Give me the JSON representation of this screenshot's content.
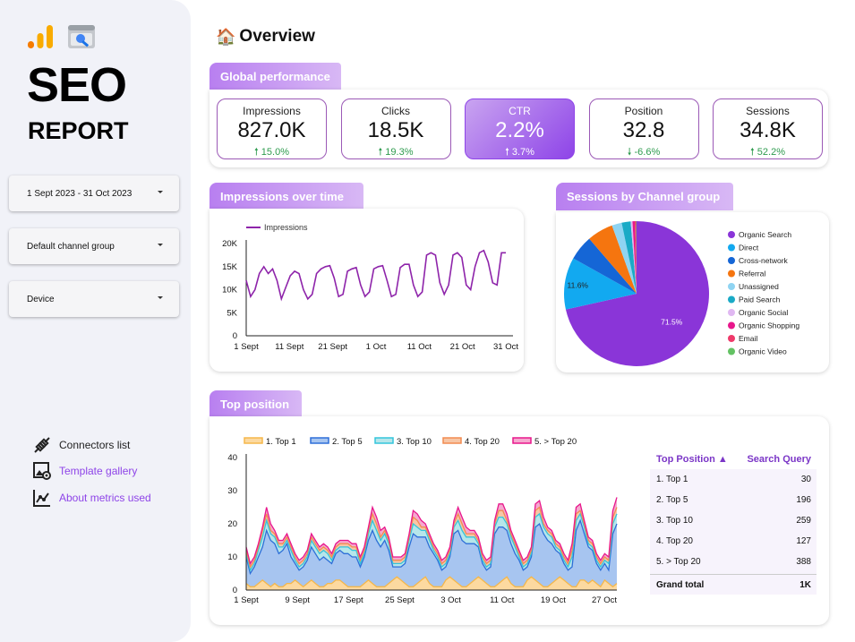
{
  "sidebar": {
    "title": "SEO",
    "subtitle": "REPORT",
    "filters": [
      "1 Sept 2023 - 31 Oct 2023",
      "Default channel group",
      "Device"
    ],
    "links": [
      {
        "label": "Connectors list",
        "icon": "connector-plug-icon",
        "color": "#222222"
      },
      {
        "label": "Template gallery",
        "icon": "gallery-image-icon",
        "color": "#8e44e8"
      },
      {
        "label": "About metrics used",
        "icon": "metrics-chart-icon",
        "color": "#8e44e8"
      }
    ]
  },
  "header": {
    "icon": "house-emoji-icon",
    "title": "Overview"
  },
  "sections": {
    "global": "Global performance",
    "impressions": "Impressions over time",
    "sessions": "Sessions by Channel group",
    "top_position": "Top position"
  },
  "kpis": [
    {
      "label": "Impressions",
      "value": "827.0K",
      "change": "15.0%",
      "dir": "up"
    },
    {
      "label": "Clicks",
      "value": "18.5K",
      "change": "19.3%",
      "dir": "up"
    },
    {
      "label": "CTR",
      "value": "2.2%",
      "change": "3.7%",
      "dir": "up",
      "active": true
    },
    {
      "label": "Position",
      "value": "32.8",
      "change": "-6.6%",
      "dir": "down"
    },
    {
      "label": "Sessions",
      "value": "34.8K",
      "change": "52.2%",
      "dir": "up"
    }
  ],
  "table": {
    "headers": [
      "Top Position",
      "Search Query"
    ],
    "rows": [
      {
        "label": "1. Top 1",
        "value": "30"
      },
      {
        "label": "2. Top 5",
        "value": "196"
      },
      {
        "label": "3. Top 10",
        "value": "259"
      },
      {
        "label": "4. Top 20",
        "value": "127"
      },
      {
        "label": "5. > Top 20",
        "value": "388"
      }
    ],
    "total_label": "Grand total",
    "total_value": "1K"
  },
  "chart_data": [
    {
      "type": "line",
      "legend": [
        "Impressions"
      ],
      "x_ticks": [
        "1 Sept",
        "11 Sept",
        "21 Sept",
        "1 Oct",
        "11 Oct",
        "21 Oct",
        "31 Oct"
      ],
      "y_ticks": [
        "0",
        "5K",
        "10K",
        "15K",
        "20K"
      ],
      "ylim": [
        0,
        20000
      ],
      "color": "#8e24aa",
      "series": [
        {
          "name": "Impressions",
          "values": [
            12000,
            8500,
            10000,
            13500,
            15000,
            13500,
            14500,
            12000,
            8000,
            10500,
            13000,
            14000,
            13500,
            10000,
            8000,
            9000,
            13500,
            14500,
            15000,
            15200,
            12500,
            8500,
            9000,
            14000,
            14500,
            14800,
            11000,
            8500,
            9500,
            14500,
            15000,
            15200,
            12000,
            8500,
            9000,
            14800,
            15500,
            15500,
            11000,
            8500,
            9500,
            17500,
            18000,
            17500,
            11500,
            9000,
            11000,
            17500,
            18000,
            17000,
            11000,
            10000,
            15000,
            18000,
            18500,
            16000,
            11500,
            11000,
            18000,
            18000
          ]
        }
      ]
    },
    {
      "type": "pie",
      "legend_position": "right",
      "slices": [
        {
          "label": "Organic Search",
          "value": 71.5,
          "color": "#8a35d8",
          "shown": "71.5%"
        },
        {
          "label": "Direct",
          "value": 11.6,
          "color": "#12a9f0",
          "shown": "11.6%"
        },
        {
          "label": "Cross-network",
          "value": 5.6,
          "color": "#1566d6",
          "shown": ""
        },
        {
          "label": "Referral",
          "value": 5.8,
          "color": "#f5750f",
          "shown": ""
        },
        {
          "label": "Unassigned",
          "value": 2.2,
          "color": "#8fd4f2",
          "shown": ""
        },
        {
          "label": "Paid Search",
          "value": 2.0,
          "color": "#1aaac6",
          "shown": ""
        },
        {
          "label": "Organic Social",
          "value": 0.4,
          "color": "#e0b8f2",
          "shown": ""
        },
        {
          "label": "Organic Shopping",
          "value": 0.5,
          "color": "#e8178c",
          "shown": ""
        },
        {
          "label": "Email",
          "value": 0.3,
          "color": "#ef3a6a",
          "shown": ""
        },
        {
          "label": "Organic Video",
          "value": 0.1,
          "color": "#63c263",
          "shown": ""
        }
      ]
    },
    {
      "type": "area",
      "stacked": true,
      "x_ticks": [
        "1 Sept",
        "9 Sept",
        "17 Sept",
        "25 Sept",
        "3 Oct",
        "11 Oct",
        "19 Oct",
        "27 Oct"
      ],
      "y_ticks": [
        "0",
        "10",
        "20",
        "30",
        "40"
      ],
      "ylim": [
        0,
        40
      ],
      "series": [
        {
          "name": "1. Top 1",
          "color": "#f5b74a",
          "fill": "#fcd9a0",
          "values": [
            2,
            1,
            1,
            2,
            3,
            2,
            1,
            2,
            1,
            1,
            2,
            2,
            3,
            2,
            1,
            2,
            3,
            2,
            1,
            1,
            2,
            2,
            3,
            3,
            2,
            1,
            1,
            1,
            1,
            2,
            3,
            2,
            1,
            1,
            1,
            2,
            3,
            4,
            3,
            2,
            1,
            1,
            2,
            3,
            4,
            2,
            1,
            1,
            1,
            3,
            4,
            3,
            2,
            1,
            1,
            2,
            3,
            4,
            3,
            2,
            1,
            1,
            2,
            3,
            4,
            2,
            1,
            1,
            1,
            3,
            4,
            3,
            2,
            1,
            1,
            2,
            3,
            4,
            3,
            2,
            1,
            1,
            3,
            3,
            2,
            3,
            2,
            1,
            3,
            2,
            1,
            2
          ]
        },
        {
          "name": "2. Top 5",
          "color": "#2e6fd8",
          "fill": "#a7c5f0",
          "values": [
            8,
            4,
            6,
            8,
            10,
            16,
            14,
            12,
            10,
            11,
            12,
            8,
            5,
            4,
            6,
            7,
            10,
            9,
            8,
            9,
            7,
            6,
            8,
            9,
            9,
            10,
            9,
            9,
            6,
            8,
            12,
            16,
            14,
            12,
            14,
            10,
            4,
            3,
            4,
            6,
            12,
            16,
            14,
            13,
            12,
            11,
            10,
            8,
            5,
            4,
            6,
            14,
            16,
            14,
            13,
            12,
            11,
            9,
            5,
            4,
            6,
            16,
            17,
            16,
            14,
            12,
            10,
            8,
            5,
            4,
            6,
            16,
            18,
            16,
            14,
            12,
            9,
            7,
            5,
            4,
            6,
            17,
            18,
            14,
            11,
            9,
            6,
            5,
            5,
            4,
            16,
            18
          ]
        },
        {
          "name": "3. Top 10",
          "color": "#33c5dc",
          "fill": "#b6e6ea",
          "values": [
            1,
            1,
            1,
            2,
            3,
            3,
            2,
            2,
            2,
            1,
            1,
            2,
            1,
            1,
            1,
            1,
            2,
            2,
            2,
            2,
            2,
            1,
            1,
            1,
            2,
            2,
            2,
            2,
            1,
            1,
            2,
            3,
            3,
            2,
            2,
            2,
            1,
            1,
            1,
            1,
            2,
            3,
            3,
            2,
            2,
            2,
            1,
            1,
            1,
            1,
            1,
            2,
            3,
            3,
            2,
            2,
            2,
            1,
            1,
            1,
            1,
            2,
            3,
            3,
            2,
            2,
            2,
            1,
            1,
            1,
            1,
            3,
            3,
            2,
            2,
            2,
            1,
            1,
            1,
            1,
            3,
            3,
            2,
            2,
            1,
            1,
            1,
            1,
            1,
            2,
            3,
            3
          ]
        },
        {
          "name": "4. Top 20",
          "color": "#f28c50",
          "fill": "#f7c6a6",
          "values": [
            1,
            1,
            1,
            1,
            2,
            2,
            1,
            1,
            1,
            1,
            1,
            1,
            1,
            1,
            1,
            1,
            1,
            1,
            1,
            1,
            1,
            1,
            1,
            1,
            1,
            1,
            1,
            1,
            1,
            1,
            1,
            2,
            2,
            1,
            1,
            1,
            1,
            1,
            1,
            1,
            1,
            2,
            2,
            1,
            1,
            1,
            1,
            1,
            1,
            1,
            1,
            1,
            2,
            2,
            1,
            1,
            1,
            1,
            1,
            1,
            1,
            1,
            2,
            2,
            1,
            1,
            1,
            1,
            1,
            1,
            1,
            2,
            2,
            1,
            1,
            1,
            1,
            1,
            1,
            1,
            2,
            2,
            1,
            1,
            1,
            1,
            1,
            1,
            1,
            1,
            2,
            2
          ]
        },
        {
          "name": "5. > Top 20",
          "color": "#e8178c",
          "fill": "#f5a8cf",
          "values": [
            1,
            1,
            1,
            1,
            1,
            2,
            2,
            1,
            1,
            1,
            1,
            1,
            1,
            1,
            1,
            1,
            1,
            1,
            1,
            1,
            1,
            1,
            1,
            1,
            1,
            1,
            1,
            1,
            1,
            1,
            1,
            2,
            2,
            2,
            1,
            1,
            1,
            1,
            1,
            1,
            1,
            2,
            2,
            2,
            1,
            1,
            1,
            1,
            1,
            1,
            1,
            1,
            2,
            2,
            2,
            1,
            1,
            1,
            1,
            1,
            1,
            1,
            2,
            2,
            2,
            1,
            1,
            1,
            1,
            1,
            1,
            2,
            2,
            2,
            1,
            1,
            1,
            1,
            1,
            1,
            2,
            2,
            2,
            1,
            1,
            1,
            1,
            1,
            1,
            1,
            2,
            3
          ]
        }
      ]
    }
  ]
}
